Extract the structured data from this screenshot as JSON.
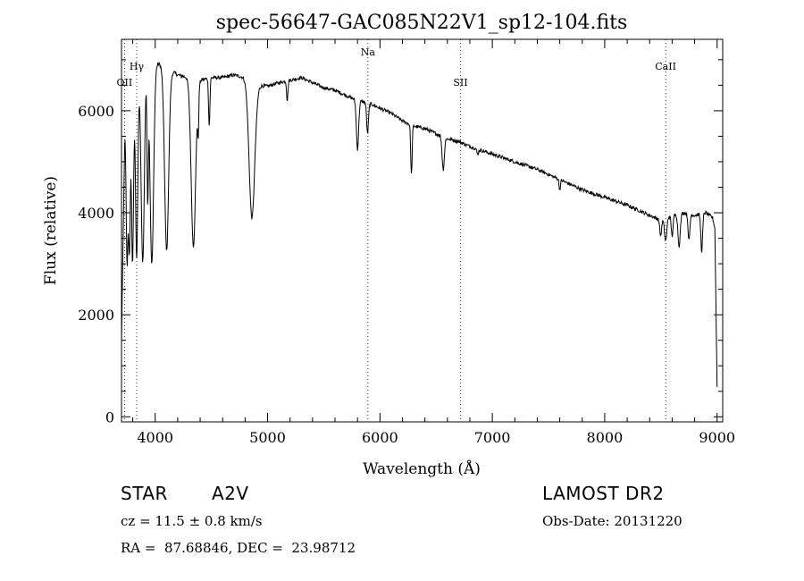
{
  "chart_data": {
    "type": "line",
    "title": "spec-56647-GAC085N22V1_sp12-104.fits",
    "xlabel": "Wavelength (Å)",
    "ylabel": "Flux (relative)",
    "xlim": [
      3700,
      9050
    ],
    "ylim": [
      -100,
      7400
    ],
    "x_ticks": [
      "4000",
      "5000",
      "6000",
      "7000",
      "8000",
      "9000"
    ],
    "y_ticks": [
      "0",
      "2000",
      "4000",
      "6000"
    ],
    "grid": false,
    "line_color": "#000000",
    "spectral_lines": [
      {
        "label": "OII",
        "wavelength": 3727
      },
      {
        "label": "Hγ",
        "wavelength": 3835
      },
      {
        "label": "Na",
        "wavelength": 5893
      },
      {
        "label": "SII",
        "wavelength": 6717
      },
      {
        "label": "CaII",
        "wavelength": 8542
      }
    ],
    "series": [
      {
        "continuum": [
          [
            3700,
            1500
          ],
          [
            3730,
            5600
          ],
          [
            3800,
            6300
          ],
          [
            3900,
            6900
          ],
          [
            4000,
            6950
          ],
          [
            4100,
            6850
          ],
          [
            4200,
            6700
          ],
          [
            4300,
            6650
          ],
          [
            4400,
            6600
          ],
          [
            4500,
            6650
          ],
          [
            4600,
            6650
          ],
          [
            4700,
            6700
          ],
          [
            4800,
            6650
          ],
          [
            4900,
            6500
          ],
          [
            5000,
            6480
          ],
          [
            5100,
            6550
          ],
          [
            5200,
            6600
          ],
          [
            5300,
            6650
          ],
          [
            5400,
            6550
          ],
          [
            5500,
            6450
          ],
          [
            5600,
            6400
          ],
          [
            5700,
            6300
          ],
          [
            5800,
            6200
          ],
          [
            5900,
            6150
          ],
          [
            6000,
            6050
          ],
          [
            6100,
            5950
          ],
          [
            6200,
            5800
          ],
          [
            6300,
            5700
          ],
          [
            6400,
            5650
          ],
          [
            6500,
            5550
          ],
          [
            6600,
            5450
          ],
          [
            6700,
            5400
          ],
          [
            6800,
            5300
          ],
          [
            7000,
            5150
          ],
          [
            7200,
            5000
          ],
          [
            7400,
            4850
          ],
          [
            7600,
            4650
          ],
          [
            7800,
            4450
          ],
          [
            8000,
            4300
          ],
          [
            8200,
            4150
          ],
          [
            8400,
            3950
          ],
          [
            8500,
            3850
          ],
          [
            8600,
            3950
          ],
          [
            8700,
            4000
          ],
          [
            8800,
            3950
          ],
          [
            8900,
            4000
          ],
          [
            8960,
            3900
          ],
          [
            8980,
            3700
          ],
          [
            9000,
            600
          ]
        ],
        "absorption": [
          [
            3750,
            3000,
            8
          ],
          [
            3770,
            3200,
            8
          ],
          [
            3798,
            3000,
            9
          ],
          [
            3835,
            3100,
            10
          ],
          [
            3889,
            3050,
            14
          ],
          [
            3933,
            4300,
            6
          ],
          [
            3970,
            3000,
            16
          ],
          [
            4102,
            3250,
            18
          ],
          [
            4340,
            3350,
            20
          ],
          [
            4383,
            5700,
            5
          ],
          [
            4481,
            5700,
            6
          ],
          [
            4861,
            3900,
            25
          ],
          [
            5175,
            6200,
            6
          ],
          [
            5800,
            5250,
            10
          ],
          [
            5890,
            5550,
            8
          ],
          [
            6280,
            4750,
            6
          ],
          [
            6563,
            4850,
            10
          ],
          [
            6870,
            5150,
            8
          ],
          [
            7600,
            4450,
            6
          ],
          [
            8498,
            3550,
            8
          ],
          [
            8542,
            3450,
            10
          ],
          [
            8600,
            3550,
            8
          ],
          [
            8662,
            3350,
            10
          ],
          [
            8750,
            3450,
            8
          ],
          [
            8863,
            3250,
            8
          ]
        ]
      }
    ]
  },
  "footer": {
    "object_type": "STAR",
    "subclass": "A2V",
    "survey": "LAMOST DR2",
    "cz": "cz = 11.5 ± 0.8 km/s",
    "obs_date": "Obs-Date: 20131220",
    "coords": "RA =  87.68846, DEC =  23.98712"
  }
}
